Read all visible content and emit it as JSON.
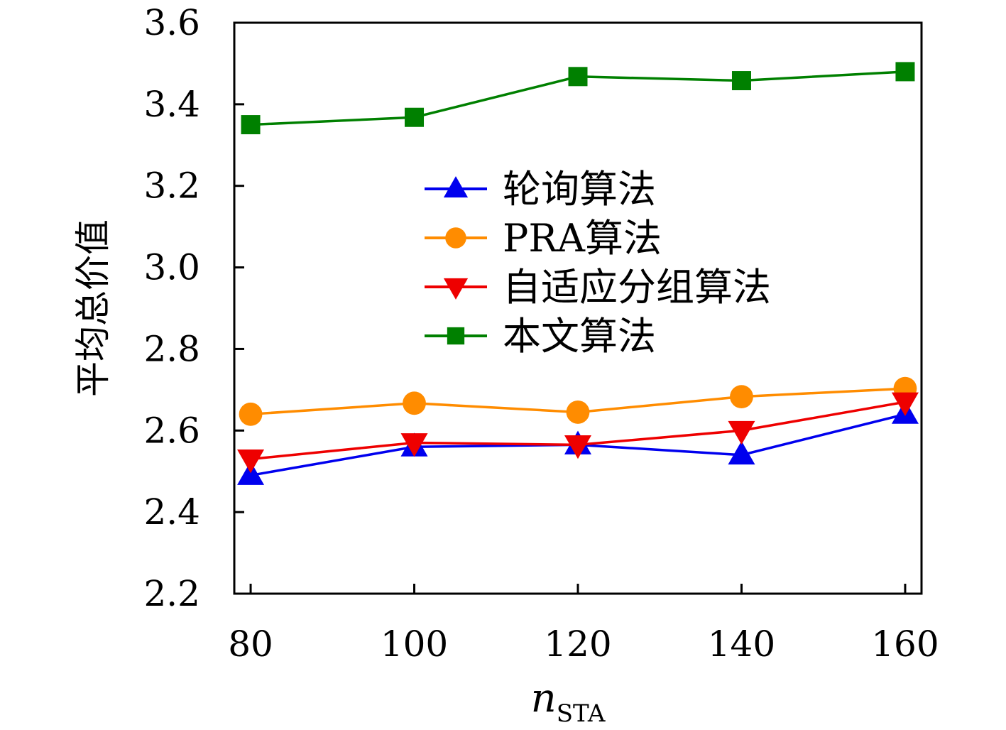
{
  "chart_data": {
    "type": "line",
    "x": [
      80,
      100,
      120,
      140,
      160
    ],
    "xlim": [
      78,
      162
    ],
    "ylim": [
      2.2,
      3.6
    ],
    "xticks": [
      "80",
      "100",
      "120",
      "140",
      "160"
    ],
    "yticks": [
      "2.2",
      "2.4",
      "2.6",
      "2.8",
      "3.0",
      "3.2",
      "3.4",
      "3.6"
    ],
    "xlabel_main": "n",
    "xlabel_sub": "STA",
    "ylabel": "平均总价值",
    "grid": false,
    "legend_position": "center",
    "series": [
      {
        "name": "轮询算法",
        "color": "#0000ee",
        "marker": "triangle-up",
        "values": [
          2.49,
          2.56,
          2.565,
          2.54,
          2.64
        ]
      },
      {
        "name": "PRA算法",
        "color": "#ff8c00",
        "marker": "circle",
        "values": [
          2.64,
          2.667,
          2.645,
          2.683,
          2.703
        ]
      },
      {
        "name": "自适应分组算法",
        "color": "#ee0000",
        "marker": "triangle-down",
        "values": [
          2.53,
          2.57,
          2.565,
          2.6,
          2.67
        ]
      },
      {
        "name": "本文算法",
        "color": "#008000",
        "marker": "square",
        "values": [
          3.35,
          3.368,
          3.468,
          3.458,
          3.48
        ]
      }
    ]
  }
}
